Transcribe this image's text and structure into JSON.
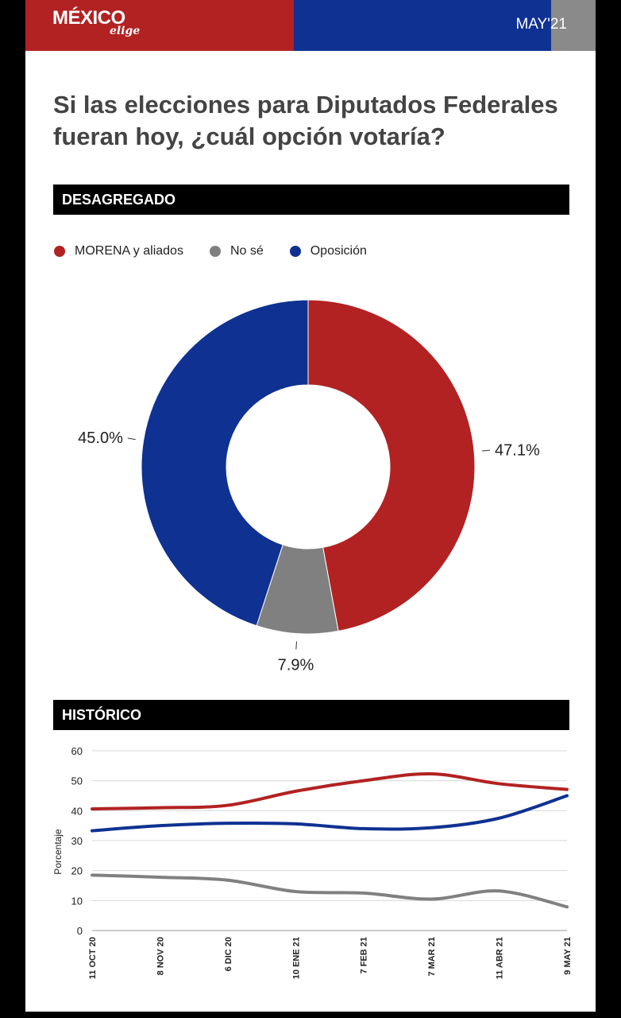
{
  "header": {
    "logo_main": "MÉXICO",
    "logo_sub": "elige",
    "date": "MAY'21",
    "colors": {
      "red": "#b22222",
      "blue": "#0f3192",
      "gray": "#8a8a8a"
    }
  },
  "title": "Si las elecciones para Diputados Federales fueran hoy, ¿cuál opción votaría?",
  "sections": {
    "breakdown": "DESAGREGADO",
    "history": "HISTÓRICO"
  },
  "chart_data": [
    {
      "type": "pie",
      "donut": true,
      "categories": [
        "MORENA y aliados",
        "No sé",
        "Oposición"
      ],
      "values": [
        47.1,
        7.9,
        45.0
      ],
      "labels": [
        "47.1%",
        "7.9%",
        "45.0%"
      ],
      "colors": [
        "#b22222",
        "#808080",
        "#0f3192"
      ],
      "legend": "top-left"
    },
    {
      "type": "line",
      "x": [
        "11 OCT 20",
        "8 NOV 20",
        "6 DIC 20",
        "10 ENE 21",
        "7 FEB 21",
        "7 MAR 21",
        "11 ABR 21",
        "9 MAY 21"
      ],
      "series": [
        {
          "name": "MORENA y aliados",
          "color": "#b22222",
          "values": [
            40.6,
            41.0,
            41.8,
            46.5,
            50.0,
            52.3,
            49.0,
            47.1
          ]
        },
        {
          "name": "Oposición",
          "color": "#0f3192",
          "values": [
            33.3,
            35.0,
            35.8,
            35.6,
            34.0,
            34.3,
            37.5,
            45.0
          ]
        },
        {
          "name": "No sé",
          "color": "#808080",
          "values": [
            18.5,
            17.8,
            16.8,
            13.0,
            12.5,
            10.5,
            13.2,
            7.9
          ]
        }
      ],
      "ylabel": "Porcentaje",
      "ylim": [
        0,
        60
      ],
      "yticks": [
        0,
        10,
        20,
        30,
        40,
        50,
        60
      ],
      "grid": true
    }
  ]
}
